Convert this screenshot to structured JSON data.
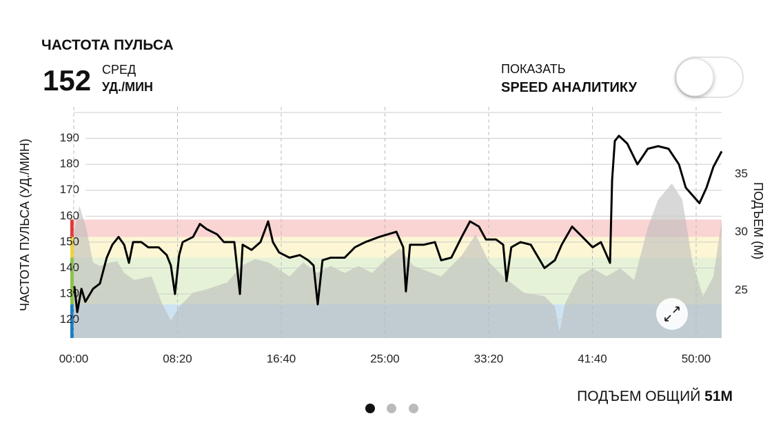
{
  "header": {
    "title": "ЧАСТОТА ПУЛЬСА",
    "avg_value": 152,
    "avg_label": "СРЕД",
    "unit": "УД./МИН"
  },
  "toggle": {
    "label": "ПОКАЗАТЬ",
    "label_bold": "SPEED АНАЛИТИКУ",
    "on": false
  },
  "chart_data": {
    "type": "line",
    "y_label": "ЧАСТОТА ПУЛЬСА (УД./МИН)",
    "y2_label": "ПОДЪЕМ (М)",
    "xlim": [
      0,
      3123
    ],
    "xticks": [
      {
        "value": 0,
        "label": "00:00"
      },
      {
        "value": 500,
        "label": "08:20"
      },
      {
        "value": 1000,
        "label": "16:40"
      },
      {
        "value": 1500,
        "label": "25:00"
      },
      {
        "value": 2000,
        "label": "33:20"
      },
      {
        "value": 2500,
        "label": "41:40"
      },
      {
        "value": 3000,
        "label": "50:00"
      }
    ],
    "ylim": [
      113,
      200
    ],
    "yticks": [
      120,
      130,
      140,
      150,
      160,
      170,
      180,
      190
    ],
    "y2lim": [
      20.9,
      40.3
    ],
    "y2ticks": [
      25,
      30,
      35
    ],
    "grid": true,
    "zones": [
      {
        "from": 113,
        "to": 126,
        "color": "#1b7fc4"
      },
      {
        "from": 126,
        "to": 144,
        "color": "#8bc34a"
      },
      {
        "from": 144,
        "to": 152,
        "color": "#f2d43a"
      },
      {
        "from": 152,
        "to": 158.7,
        "color": "#e53935"
      }
    ],
    "series": [
      {
        "type": "area",
        "axis": "y2",
        "color": "#b8b8b8",
        "x": [
          0,
          27,
          60,
          93,
          126,
          176,
          209,
          243,
          292,
          375,
          425,
          468,
          508,
          575,
          641,
          741,
          807,
          874,
          940,
          1040,
          1106,
          1173,
          1239,
          1306,
          1372,
          1438,
          1505,
          1571,
          1638,
          1771,
          1870,
          1937,
          2003,
          2070,
          2169,
          2269,
          2319,
          2342,
          2369,
          2435,
          2501,
          2568,
          2634,
          2701,
          2767,
          2817,
          2883,
          2933,
          2983,
          3033,
          3083,
          3123
        ],
        "values": [
          29.8,
          32.3,
          30.4,
          27.4,
          27.1,
          27.4,
          27.5,
          26.5,
          25.9,
          26.2,
          23.9,
          22.4,
          23.6,
          24.8,
          25.1,
          25.7,
          27.1,
          27.7,
          27.4,
          26.2,
          27.4,
          26.5,
          27.1,
          26.5,
          27.1,
          26.5,
          27.7,
          28.6,
          27.1,
          26.2,
          28.0,
          29.8,
          27.4,
          26.2,
          24.8,
          24.5,
          23.6,
          21.5,
          23.9,
          26.2,
          26.9,
          26.2,
          26.9,
          25.9,
          30.4,
          32.8,
          34.2,
          32.8,
          27.4,
          24.5,
          26.2,
          31.0
        ]
      },
      {
        "type": "line",
        "color": "#000000",
        "x": [
          3,
          17,
          37,
          56,
          93,
          126,
          159,
          186,
          216,
          243,
          266,
          286,
          326,
          359,
          409,
          448,
          468,
          488,
          508,
          525,
          575,
          608,
          641,
          691,
          724,
          774,
          801,
          814,
          857,
          900,
          937,
          960,
          990,
          1040,
          1090,
          1130,
          1156,
          1176,
          1199,
          1239,
          1306,
          1355,
          1405,
          1472,
          1555,
          1588,
          1601,
          1621,
          1688,
          1741,
          1771,
          1820,
          1870,
          1910,
          1953,
          1987,
          2036,
          2070,
          2086,
          2109,
          2153,
          2203,
          2269,
          2319,
          2352,
          2402,
          2452,
          2501,
          2541,
          2585,
          2595,
          2608,
          2628,
          2668,
          2717,
          2767,
          2817,
          2867,
          2917,
          2950,
          2983,
          3016,
          3050,
          3083,
          3123
        ],
        "values": [
          133,
          123,
          132,
          127,
          132,
          134,
          144,
          149,
          152,
          149,
          142,
          150,
          150,
          148,
          148,
          145,
          141,
          130,
          145,
          150,
          152,
          157,
          155,
          153,
          150,
          150,
          130,
          149,
          147,
          150,
          158,
          150,
          146,
          144,
          145,
          143,
          141,
          126,
          143,
          144,
          144,
          148,
          150,
          152,
          154,
          148,
          131,
          149,
          149,
          150,
          143,
          144,
          152,
          158,
          156,
          151,
          151,
          149,
          135,
          148,
          150,
          149,
          140,
          143,
          149,
          156,
          152,
          148,
          150,
          142,
          174,
          189,
          191,
          188,
          180,
          186,
          187,
          186,
          180,
          171,
          168,
          165,
          171,
          179,
          185
        ]
      }
    ]
  },
  "footer": {
    "label": "ПОДЪЕМ ОБЩИЙ",
    "value": "51М"
  }
}
